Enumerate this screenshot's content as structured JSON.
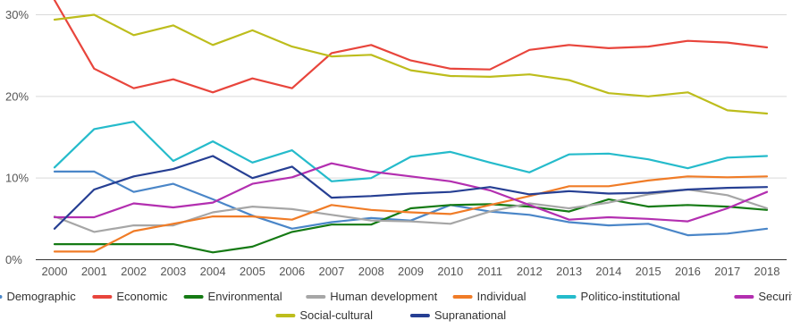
{
  "chart_data": {
    "type": "line",
    "title": "",
    "xlabel": "",
    "ylabel": "",
    "x": [
      "2000",
      "2001",
      "2002",
      "2003",
      "2004",
      "2005",
      "2006",
      "2007",
      "2008",
      "2009",
      "2010",
      "2011",
      "2012",
      "2013",
      "2014",
      "2015",
      "2016",
      "2017",
      "2018"
    ],
    "ylim": [
      0,
      30
    ],
    "y_ticks": [
      0,
      10,
      20,
      30
    ],
    "y_tick_labels": [
      "0%",
      "10%",
      "20%",
      "30%"
    ],
    "grid": true,
    "legend_position": "bottom",
    "series": [
      {
        "name": "Demographic",
        "color": "#4a86c8",
        "values": [
          10.8,
          10.8,
          8.3,
          9.3,
          7.4,
          5.4,
          3.8,
          4.6,
          5.1,
          4.8,
          6.7,
          5.9,
          5.5,
          4.6,
          4.2,
          4.4,
          3.0,
          3.2,
          3.8
        ]
      },
      {
        "name": "Economic",
        "color": "#e8453c",
        "values": [
          31.8,
          23.4,
          21.0,
          22.1,
          20.5,
          22.2,
          21.0,
          25.3,
          26.3,
          24.4,
          23.4,
          23.3,
          25.7,
          26.3,
          25.9,
          26.1,
          26.8,
          26.6,
          26.0
        ]
      },
      {
        "name": "Environmental",
        "color": "#157a14",
        "values": [
          1.9,
          1.9,
          1.9,
          1.9,
          0.9,
          1.6,
          3.4,
          4.3,
          4.3,
          6.3,
          6.7,
          6.8,
          6.5,
          5.9,
          7.4,
          6.5,
          6.7,
          6.5,
          6.1
        ]
      },
      {
        "name": "Human development",
        "color": "#a6a6a6",
        "values": [
          5.3,
          3.4,
          4.2,
          4.2,
          5.8,
          6.5,
          6.2,
          5.5,
          4.8,
          4.7,
          4.4,
          5.9,
          6.9,
          6.3,
          7.0,
          8.0,
          8.6,
          7.9,
          6.3
        ]
      },
      {
        "name": "Individual",
        "color": "#f07c27",
        "values": [
          1.0,
          1.0,
          3.5,
          4.4,
          5.3,
          5.3,
          4.9,
          6.7,
          6.1,
          5.8,
          5.6,
          6.7,
          7.8,
          9.0,
          9.0,
          9.7,
          10.2,
          10.1,
          10.2
        ]
      },
      {
        "name": "Politico-institutional",
        "color": "#25bbcb",
        "values": [
          11.3,
          16.0,
          16.9,
          12.1,
          14.5,
          11.9,
          13.4,
          9.6,
          10.0,
          12.6,
          13.2,
          11.9,
          10.7,
          12.9,
          13.0,
          12.3,
          11.2,
          12.5,
          12.7
        ]
      },
      {
        "name": "Security",
        "color": "#b32fb0",
        "values": [
          5.2,
          5.2,
          6.9,
          6.4,
          7.0,
          9.3,
          10.1,
          11.8,
          10.8,
          10.2,
          9.6,
          8.5,
          6.7,
          4.9,
          5.2,
          5.0,
          4.7,
          6.3,
          8.3
        ]
      },
      {
        "name": "Social-cultural",
        "color": "#bdbd1c",
        "values": [
          29.4,
          30.0,
          27.5,
          28.7,
          26.3,
          28.1,
          26.1,
          24.9,
          25.1,
          23.2,
          22.5,
          22.4,
          22.7,
          22.0,
          20.4,
          20.0,
          20.5,
          18.3,
          17.9
        ]
      },
      {
        "name": "Supranational",
        "color": "#263f93",
        "values": [
          3.8,
          8.6,
          10.2,
          11.1,
          12.7,
          10.0,
          11.4,
          7.6,
          7.8,
          8.1,
          8.3,
          8.9,
          8.0,
          8.4,
          8.1,
          8.2,
          8.6,
          8.8,
          8.9
        ]
      }
    ]
  }
}
